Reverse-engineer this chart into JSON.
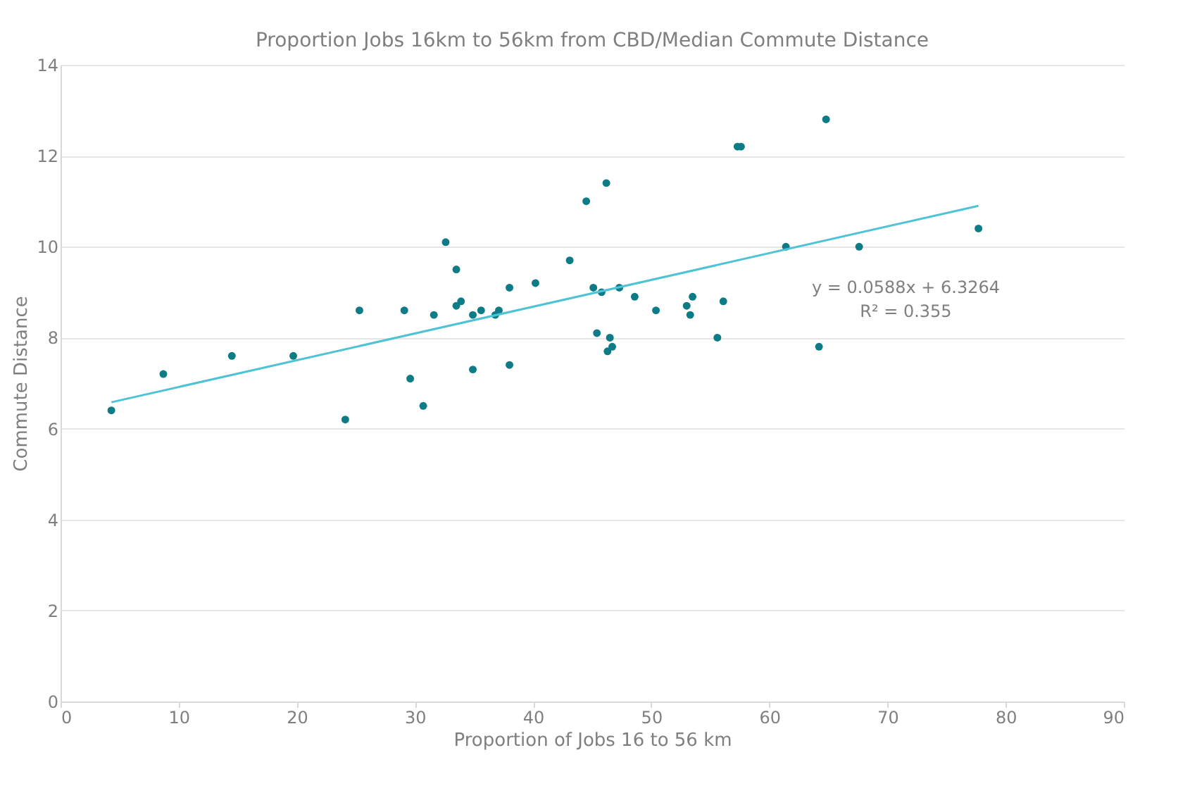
{
  "chart_data": {
    "type": "scatter",
    "title": "Proportion Jobs 16km to 56km from CBD/Median Commute Distance",
    "xlabel": "Proportion of Jobs 16 to 56 km",
    "ylabel": "Commute Distance",
    "series": [
      {
        "color": "#0e7c86",
        "marker": "circle",
        "x": [
          4.3,
          8.7,
          14.5,
          19.7,
          24.1,
          25.3,
          29.1,
          29.6,
          30.7,
          31.6,
          32.6,
          33.5,
          33.5,
          33.9,
          34.9,
          34.9,
          35.6,
          36.8,
          37.1,
          38.0,
          38.0,
          40.2,
          43.1,
          44.5,
          46.2,
          45.1,
          45.8,
          47.3,
          45.4,
          46.5,
          46.3,
          46.7,
          48.6,
          50.4,
          53.0,
          53.5,
          53.3,
          56.1,
          55.6,
          57.3,
          57.6,
          64.8,
          61.4,
          67.6,
          77.7,
          64.2
        ],
        "values": [
          6.4,
          7.2,
          7.6,
          7.6,
          6.2,
          8.6,
          8.6,
          7.1,
          6.5,
          8.5,
          10.1,
          9.5,
          8.7,
          8.8,
          8.5,
          7.3,
          8.6,
          8.5,
          8.6,
          9.1,
          7.4,
          9.2,
          9.7,
          11.0,
          11.4,
          9.1,
          9.0,
          9.1,
          8.1,
          8.0,
          7.7,
          7.8,
          8.9,
          8.6,
          8.7,
          8.9,
          8.5,
          8.8,
          8.0,
          12.2,
          12.2,
          12.8,
          10.0,
          10.0,
          10.4,
          7.8
        ]
      },
      {
        "type": "line",
        "color": "#4fc3d6",
        "x": [
          4.3,
          77.7
        ],
        "values": [
          6.58,
          10.9
        ]
      }
    ],
    "annotations": [
      "y = 0.0588x + 6.3264",
      "R² = 0.355"
    ],
    "xlim": [
      0,
      90
    ],
    "xticks": [
      0,
      10,
      20,
      30,
      40,
      50,
      60,
      70,
      80,
      90
    ],
    "ylim": [
      0,
      14
    ],
    "yticks": [
      0,
      2,
      4,
      6,
      8,
      10,
      12,
      14
    ],
    "grid": "y"
  }
}
